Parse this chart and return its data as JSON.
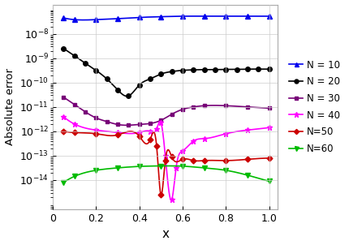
{
  "title": "",
  "xlabel": "x",
  "ylabel": "Absolute error",
  "xlim": [
    0.0,
    1.04
  ],
  "ylim_log": [
    -15.2,
    -6.8
  ],
  "background_color": "#ffffff",
  "grid_color": "#cccccc",
  "series": [
    {
      "label": "N = 10",
      "color": "#0000ee",
      "marker": "^",
      "markersize": 4,
      "linewidth": 1.2,
      "x": [
        0.05,
        0.1,
        0.2,
        0.3,
        0.4,
        0.5,
        0.6,
        0.7,
        0.8,
        0.9,
        1.0
      ],
      "y_log10": [
        -7.35,
        -7.42,
        -7.42,
        -7.38,
        -7.33,
        -7.3,
        -7.28,
        -7.28,
        -7.28,
        -7.28,
        -7.28
      ]
    },
    {
      "label": "N = 20",
      "color": "#000000",
      "marker": "o",
      "markersize": 4,
      "linewidth": 1.2,
      "x": [
        0.05,
        0.1,
        0.15,
        0.2,
        0.25,
        0.3,
        0.35,
        0.4,
        0.45,
        0.5,
        0.55,
        0.6,
        0.65,
        0.7,
        0.75,
        0.8,
        0.85,
        0.9,
        0.95,
        1.0
      ],
      "y_log10": [
        -8.6,
        -8.9,
        -9.2,
        -9.5,
        -9.85,
        -10.3,
        -10.55,
        -10.1,
        -9.85,
        -9.65,
        -9.55,
        -9.5,
        -9.48,
        -9.47,
        -9.47,
        -9.46,
        -9.46,
        -9.45,
        -9.45,
        -9.45
      ]
    },
    {
      "label": "N = 30",
      "color": "#770077",
      "marker": "s",
      "markersize": 3.5,
      "linewidth": 1.2,
      "x": [
        0.05,
        0.1,
        0.15,
        0.2,
        0.25,
        0.3,
        0.35,
        0.4,
        0.45,
        0.5,
        0.55,
        0.6,
        0.65,
        0.7,
        0.8,
        0.9,
        1.0
      ],
      "y_log10": [
        -10.6,
        -10.9,
        -11.2,
        -11.45,
        -11.6,
        -11.72,
        -11.75,
        -11.72,
        -11.68,
        -11.55,
        -11.3,
        -11.1,
        -11.0,
        -10.95,
        -10.95,
        -11.0,
        -11.05
      ]
    },
    {
      "label": "N = 40",
      "color": "#ff00ff",
      "marker": "*",
      "markersize": 5,
      "linewidth": 1.2,
      "x": [
        0.05,
        0.1,
        0.2,
        0.3,
        0.4,
        0.45,
        0.48,
        0.5,
        0.52,
        0.55,
        0.57,
        0.6,
        0.65,
        0.7,
        0.8,
        0.9,
        1.0
      ],
      "y_log10": [
        -11.4,
        -11.7,
        -11.95,
        -12.05,
        -12.05,
        -12.0,
        -11.9,
        -11.65,
        -13.0,
        -14.8,
        -13.5,
        -12.8,
        -12.4,
        -12.3,
        -12.1,
        -11.95,
        -11.85
      ]
    },
    {
      "label": "N=50",
      "color": "#cc0000",
      "marker": "D",
      "markersize": 3.5,
      "linewidth": 1.2,
      "x": [
        0.05,
        0.1,
        0.2,
        0.3,
        0.4,
        0.45,
        0.48,
        0.5,
        0.52,
        0.55,
        0.6,
        0.65,
        0.7,
        0.8,
        0.9,
        1.0
      ],
      "y_log10": [
        -12.0,
        -12.05,
        -12.1,
        -12.15,
        -12.2,
        -12.35,
        -12.6,
        -14.6,
        -13.2,
        -13.05,
        -13.15,
        -13.2,
        -13.2,
        -13.2,
        -13.15,
        -13.1
      ]
    },
    {
      "label": "N=60",
      "color": "#00bb00",
      "marker": "v",
      "markersize": 4,
      "linewidth": 1.2,
      "x": [
        0.05,
        0.1,
        0.2,
        0.3,
        0.4,
        0.5,
        0.6,
        0.7,
        0.8,
        0.9,
        1.0
      ],
      "y_log10": [
        -14.1,
        -13.85,
        -13.6,
        -13.5,
        -13.44,
        -13.42,
        -13.43,
        -13.5,
        -13.6,
        -13.8,
        -14.05
      ]
    }
  ]
}
